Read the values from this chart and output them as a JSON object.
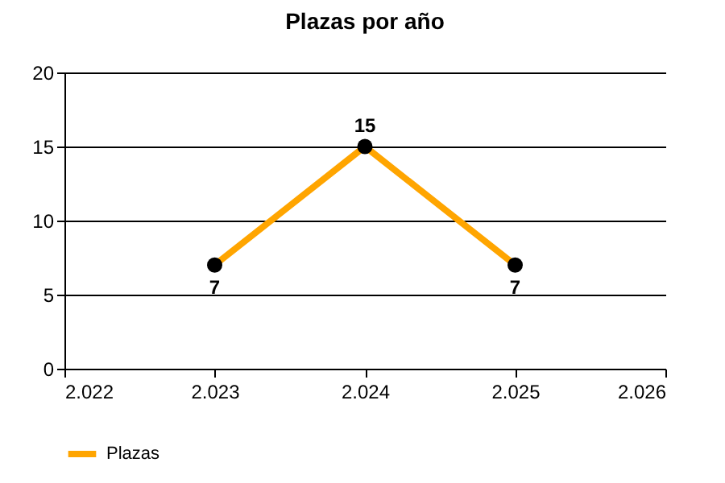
{
  "chart_data": {
    "type": "line",
    "title": "Plazas por año",
    "x": [
      2023,
      2024,
      2025
    ],
    "series": [
      {
        "name": "Plazas",
        "color": "#ffa500",
        "values": [
          7,
          15,
          7
        ]
      }
    ],
    "xlim": [
      2022,
      2026
    ],
    "xticks": [
      {
        "value": 2022,
        "label": "2.022"
      },
      {
        "value": 2023,
        "label": "2.023"
      },
      {
        "value": 2024,
        "label": "2.024"
      },
      {
        "value": 2025,
        "label": "2.025"
      },
      {
        "value": 2026,
        "label": "2.026"
      }
    ],
    "ylim": [
      0,
      20
    ],
    "yticks": [
      0,
      5,
      10,
      15,
      20
    ],
    "grid": "y",
    "legend": "bottom left",
    "marker": "circle",
    "line_style": "solid",
    "data_labels": true
  }
}
